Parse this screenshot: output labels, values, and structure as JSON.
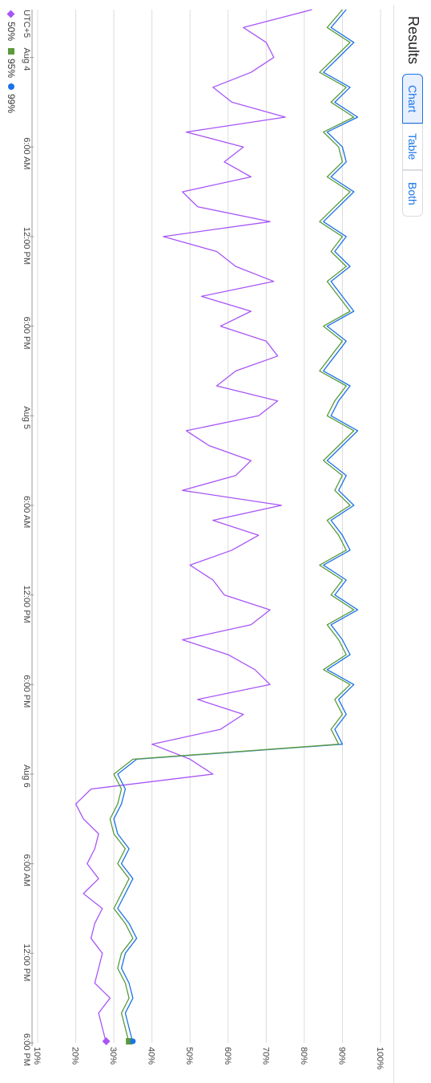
{
  "header": {
    "title": "Results",
    "view_options": [
      "Chart",
      "Table",
      "Both"
    ],
    "selected_view": "Chart"
  },
  "timezone_label": "UTC+5",
  "colors": {
    "p50": "#a855f7",
    "p95": "#5a9a3c",
    "p99": "#1a73e8",
    "grid": "#dcdcdc",
    "accent": "#1a73e8"
  },
  "chart_data": {
    "type": "line",
    "title": "",
    "xlabel": "",
    "ylabel": "",
    "x_ticks": [
      "Aug 4",
      "6:00 AM",
      "12:00 PM",
      "6:00 PM",
      "Aug 5",
      "6:00 AM",
      "12:00 PM",
      "6:00 PM",
      "Aug 6",
      "6:00 AM",
      "12:00 PM",
      "6:00 PM"
    ],
    "y_ticks": [
      "10%",
      "20%",
      "30%",
      "40%",
      "50%",
      "60%",
      "70%",
      "80%",
      "90%",
      "100%"
    ],
    "ylim": [
      10,
      100
    ],
    "x_hours": [
      -3.2,
      66
    ],
    "grid": true,
    "legend_position": "left",
    "series": [
      {
        "name": "50%",
        "marker": "diamond",
        "x_hours": [
          -3.2,
          -2,
          -1,
          0,
          1,
          2,
          3,
          4,
          5,
          6,
          7,
          8,
          9,
          10,
          11,
          12,
          13,
          14,
          15,
          16,
          17,
          18,
          19,
          20,
          21,
          22,
          23,
          24,
          25,
          26,
          27,
          28,
          29,
          30,
          31,
          32,
          33,
          34,
          35,
          36,
          37,
          38,
          39,
          40,
          41,
          42,
          43,
          44,
          45,
          46,
          47,
          48,
          49,
          50,
          51,
          52,
          53,
          54,
          55,
          56,
          57,
          58,
          59,
          60,
          61,
          62,
          63,
          64,
          65,
          66
        ],
        "values": [
          82,
          64,
          70,
          72,
          66,
          56,
          61,
          75,
          49,
          64,
          59,
          66,
          48,
          52,
          71,
          43,
          57,
          62,
          72,
          53,
          66,
          58,
          70,
          73,
          62,
          57,
          73,
          68,
          49,
          55,
          66,
          62,
          48,
          74,
          56,
          68,
          61,
          50,
          56,
          59,
          71,
          66,
          48,
          60,
          67,
          71,
          52,
          64,
          58,
          40,
          50,
          56,
          24,
          20,
          22,
          26,
          25,
          23,
          26,
          22,
          27,
          25,
          24,
          27,
          26,
          25,
          29,
          26,
          27,
          28
        ]
      },
      {
        "name": "95%",
        "marker": "square",
        "x_hours": [
          -3.2,
          -2,
          -1,
          0,
          1,
          2,
          3,
          4,
          5,
          6,
          7,
          8,
          9,
          10,
          11,
          12,
          13,
          14,
          15,
          16,
          17,
          18,
          19,
          20,
          21,
          22,
          23,
          24,
          25,
          26,
          27,
          28,
          29,
          30,
          31,
          32,
          33,
          34,
          35,
          36,
          37,
          38,
          39,
          40,
          41,
          42,
          43,
          44,
          45,
          46,
          47,
          48,
          49,
          50,
          51,
          52,
          53,
          54,
          55,
          56,
          57,
          58,
          59,
          60,
          61,
          62,
          63,
          64,
          65,
          66
        ],
        "values": [
          90,
          86,
          92,
          88,
          84,
          91,
          87,
          93,
          85,
          89,
          90,
          86,
          92,
          88,
          84,
          90,
          87,
          91,
          86,
          89,
          92,
          85,
          90,
          87,
          84,
          91,
          88,
          86,
          93,
          89,
          85,
          90,
          88,
          92,
          86,
          89,
          91,
          84,
          90,
          87,
          93,
          86,
          89,
          91,
          85,
          92,
          88,
          90,
          87,
          89,
          35,
          30,
          32,
          31,
          29,
          30,
          33,
          31,
          34,
          32,
          30,
          33,
          35,
          32,
          31,
          33,
          34,
          32,
          33,
          34
        ]
      },
      {
        "name": "99%",
        "marker": "circle",
        "x_hours": [
          -3.2,
          -2,
          -1,
          0,
          1,
          2,
          3,
          4,
          5,
          6,
          7,
          8,
          9,
          10,
          11,
          12,
          13,
          14,
          15,
          16,
          17,
          18,
          19,
          20,
          21,
          22,
          23,
          24,
          25,
          26,
          27,
          28,
          29,
          30,
          31,
          32,
          33,
          34,
          35,
          36,
          37,
          38,
          39,
          40,
          41,
          42,
          43,
          44,
          45,
          46,
          47,
          48,
          49,
          50,
          51,
          52,
          53,
          54,
          55,
          56,
          57,
          58,
          59,
          60,
          61,
          62,
          63,
          64,
          65,
          66
        ],
        "values": [
          91,
          87,
          93,
          89,
          85,
          92,
          88,
          94,
          86,
          90,
          91,
          87,
          93,
          89,
          85,
          91,
          88,
          92,
          87,
          90,
          93,
          86,
          91,
          88,
          85,
          92,
          89,
          87,
          94,
          90,
          86,
          91,
          89,
          93,
          87,
          90,
          92,
          85,
          91,
          88,
          94,
          87,
          90,
          92,
          86,
          93,
          89,
          91,
          88,
          90,
          36,
          31,
          33,
          32,
          30,
          31,
          34,
          32,
          35,
          33,
          31,
          34,
          36,
          33,
          32,
          34,
          35,
          33,
          34,
          35
        ]
      }
    ]
  }
}
